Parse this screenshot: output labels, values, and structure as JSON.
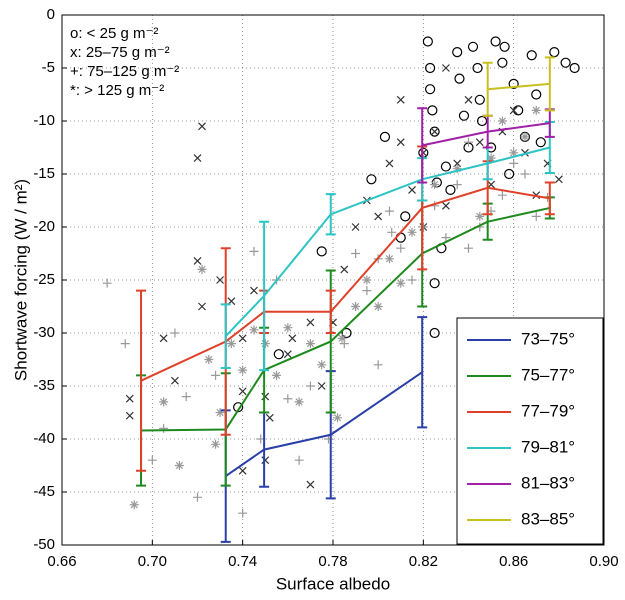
{
  "chart_data": {
    "type": "line",
    "xlabel": "Surface albedo",
    "ylabel": "Shortwave forcing (W / m²)",
    "xlim": [
      0.66,
      0.9
    ],
    "ylim": [
      -50,
      0
    ],
    "xticks": [
      0.66,
      {
        "value": 0.7,
        "label": "0.70"
      },
      0.74,
      0.78,
      0.82,
      0.86,
      {
        "value": 0.9,
        "label": "0.90"
      }
    ],
    "yticks": [
      -50,
      -45,
      -40,
      -35,
      -30,
      -25,
      -20,
      -15,
      -10,
      -5,
      0
    ],
    "grid": true,
    "legend": "lower right",
    "series": [
      {
        "name": "73–75°",
        "color": "#2b3fa8",
        "x": [
          0.7325,
          0.7495,
          0.779,
          0.8195
        ],
        "values": [
          -43.5,
          -41,
          -39.6,
          -33.7
        ],
        "errors": [
          6.2,
          3.5,
          6,
          5.2
        ]
      },
      {
        "name": "75–77°",
        "color": "#1e8a1e",
        "x": [
          0.695,
          0.7325,
          0.7495,
          0.779,
          0.8195,
          0.8485,
          0.876
        ],
        "values": [
          -39.2,
          -39.1,
          -33.5,
          -30.8,
          -22.5,
          -19.5,
          -18.2
        ],
        "errors": [
          5.2,
          5.3,
          4,
          6.7,
          5,
          1.7,
          1
        ]
      },
      {
        "name": "77–79°",
        "color": "#e0402a",
        "x": [
          0.695,
          0.7325,
          0.7495,
          0.779,
          0.8195,
          0.8485,
          0.876
        ],
        "values": [
          -34.5,
          -30.8,
          -28,
          -28,
          -18.2,
          -16.3,
          -17.3
        ],
        "errors": [
          8.5,
          8.8,
          2,
          2,
          5.8,
          2.5,
          1.5
        ]
      },
      {
        "name": "79–81°",
        "color": "#2cc4c4",
        "x": [
          0.7325,
          0.7495,
          0.779,
          0.8195,
          0.8485,
          0.876
        ],
        "values": [
          -30.3,
          -26.5,
          -18.8,
          -15.5,
          -14,
          -12.5
        ],
        "errors": [
          3,
          7,
          1.9,
          2,
          1.5,
          2.4
        ]
      },
      {
        "name": "81–83°",
        "color": "#a020a8",
        "x": [
          0.8195,
          0.8485,
          0.876
        ],
        "values": [
          -12.3,
          -11,
          -10.2
        ],
        "errors": [
          3.5,
          1.5,
          1.3
        ]
      },
      {
        "name": "83–85°",
        "color": "#c8c020",
        "x": [
          0.8485,
          0.876
        ],
        "values": [
          -7,
          -6.5
        ],
        "errors": [
          2.5,
          2.5
        ]
      }
    ],
    "scatter": [
      {
        "name": "o: < 25 g m⁻²",
        "marker": "circle",
        "color": "#000000",
        "x": [
          0.738,
          0.756,
          0.775,
          0.786,
          0.797,
          0.803,
          0.81,
          0.812,
          0.82,
          0.822,
          0.823,
          0.823,
          0.824,
          0.825,
          0.826,
          0.825,
          0.825,
          0.83,
          0.832,
          0.835,
          0.836,
          0.838,
          0.84,
          0.842,
          0.844,
          0.845,
          0.846,
          0.852,
          0.855,
          0.856,
          0.86,
          0.862,
          0.865,
          0.868,
          0.87,
          0.872,
          0.878,
          0.883,
          0.887,
          0.828,
          0.858,
          0.85
        ],
        "values": [
          -37,
          -32,
          -22.3,
          -30,
          -15.5,
          -11.5,
          -21,
          -19,
          -13,
          -2.5,
          -5,
          -7,
          -9,
          -11,
          -15.8,
          -25.3,
          -30,
          -14.3,
          -16.5,
          -3.5,
          -6,
          -9.5,
          -12.5,
          -3,
          -5,
          -8,
          -10,
          -2.5,
          -4.5,
          -3,
          -6.5,
          -9,
          -11.5,
          -3.8,
          -7.5,
          -12,
          -3.5,
          -4.5,
          -5,
          -22,
          -15,
          -12.5
        ]
      },
      {
        "name": "x: 25–75 g m⁻²",
        "marker": "x",
        "color": "#333333",
        "x": [
          0.69,
          0.69,
          0.72,
          0.722,
          0.72,
          0.705,
          0.71,
          0.722,
          0.73,
          0.74,
          0.74,
          0.745,
          0.75,
          0.752,
          0.76,
          0.762,
          0.77,
          0.775,
          0.78,
          0.785,
          0.79,
          0.795,
          0.8,
          0.805,
          0.81,
          0.815,
          0.82,
          0.82,
          0.825,
          0.83,
          0.835,
          0.84,
          0.845,
          0.85,
          0.855,
          0.86,
          0.865,
          0.87,
          0.875,
          0.88,
          0.81,
          0.83,
          0.74,
          0.75,
          0.77,
          0.735
        ],
        "values": [
          -36.2,
          -37.8,
          -13.5,
          -10.5,
          -23.2,
          -30.5,
          -34.5,
          -27.5,
          -25,
          -30.5,
          -35.5,
          -26,
          -36,
          -38,
          -32,
          -30.5,
          -29,
          -35,
          -29,
          -24,
          -20,
          -17.5,
          -19,
          -14,
          -12,
          -16.5,
          -20,
          -13,
          -11,
          -18,
          -14,
          -8,
          -12,
          -16,
          -11,
          -9,
          -13,
          -17,
          -14,
          -15.5,
          -8,
          -5,
          -43,
          -42,
          -44.3,
          -27
        ]
      },
      {
        "name": "+: 75–125 g m⁻²",
        "marker": "plus",
        "color": "#999999",
        "x": [
          0.68,
          0.688,
          0.7,
          0.705,
          0.71,
          0.715,
          0.72,
          0.728,
          0.74,
          0.745,
          0.748,
          0.755,
          0.76,
          0.765,
          0.77,
          0.778,
          0.785,
          0.79,
          0.795,
          0.8,
          0.805,
          0.81,
          0.815,
          0.82,
          0.825,
          0.83,
          0.835,
          0.84,
          0.845,
          0.85,
          0.855,
          0.86,
          0.865,
          0.87,
          0.875,
          0.8,
          0.806,
          0.84
        ],
        "values": [
          -25.3,
          -31,
          -42,
          -39,
          -30,
          -36,
          -45.5,
          -34,
          -47,
          -22.3,
          -40,
          -25,
          -36.2,
          -42,
          -35,
          -40,
          -31,
          -22.5,
          -26,
          -23,
          -18.5,
          -22,
          -25,
          -20,
          -18,
          -21,
          -16,
          -12,
          -20,
          -18.5,
          -17,
          -14,
          -15,
          -19,
          -17.2,
          -33,
          -20.5,
          -22
        ]
      },
      {
        "name": "*: > 125 g m⁻²",
        "marker": "star",
        "color": "#999999",
        "x": [
          0.692,
          0.705,
          0.712,
          0.722,
          0.725,
          0.728,
          0.73,
          0.735,
          0.74,
          0.745,
          0.75,
          0.755,
          0.76,
          0.765,
          0.77,
          0.775,
          0.782,
          0.784,
          0.79,
          0.795,
          0.8,
          0.805,
          0.81,
          0.815,
          0.825,
          0.835,
          0.845,
          0.85,
          0.855,
          0.86,
          0.865,
          0.87
        ],
        "values": [
          -46.2,
          -36.5,
          -42.5,
          -24,
          -32.5,
          -40.5,
          -37.5,
          -31,
          -33.5,
          -29.7,
          -31,
          -34,
          -29.5,
          -36.5,
          -31,
          -33,
          -38,
          -30.5,
          -27.5,
          -25,
          -27.5,
          -23,
          -25.3,
          -20.5,
          -16,
          -14.5,
          -19,
          -13.5,
          -10,
          -13,
          -11.5,
          -9
        ]
      }
    ]
  }
}
